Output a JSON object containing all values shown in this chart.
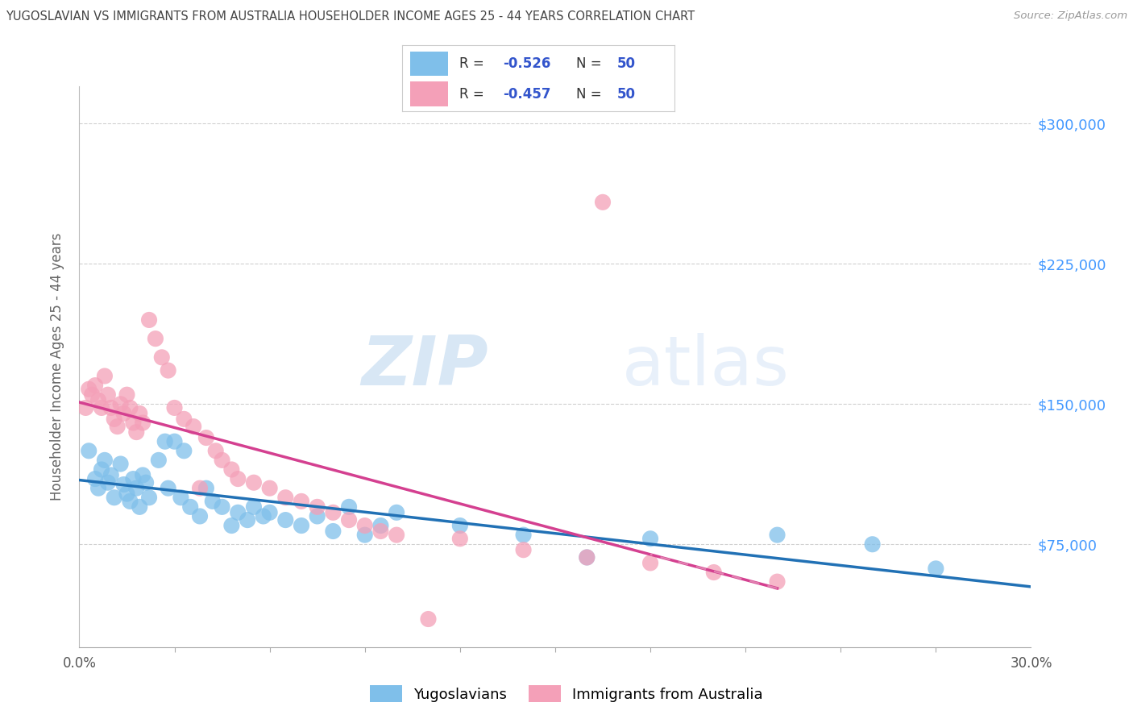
{
  "title": "YUGOSLAVIAN VS IMMIGRANTS FROM AUSTRALIA HOUSEHOLDER INCOME AGES 25 - 44 YEARS CORRELATION CHART",
  "source": "Source: ZipAtlas.com",
  "ylabel": "Householder Income Ages 25 - 44 years",
  "ytick_labels": [
    "$75,000",
    "$150,000",
    "$225,000",
    "$300,000"
  ],
  "ytick_values": [
    75000,
    150000,
    225000,
    300000
  ],
  "ymin": 20000,
  "ymax": 320000,
  "xmin": 0.0,
  "xmax": 0.3,
  "legend1_r": "-0.526",
  "legend1_n": "50",
  "legend2_r": "-0.457",
  "legend2_n": "50",
  "legend_label1": "Yugoslavians",
  "legend_label2": "Immigrants from Australia",
  "blue_color": "#7fbfea",
  "pink_color": "#f4a0b8",
  "blue_line_color": "#2171b5",
  "pink_line_color": "#d44090",
  "pink_dash_color": "#e8a0c0",
  "background_color": "#ffffff",
  "grid_color": "#d0d0d0",
  "title_color": "#444444",
  "right_tick_color": "#4499ff",
  "watermark_zip": "ZIP",
  "watermark_atlas": "atlas",
  "blue_x": [
    0.003,
    0.005,
    0.006,
    0.007,
    0.008,
    0.009,
    0.01,
    0.011,
    0.013,
    0.014,
    0.015,
    0.016,
    0.017,
    0.018,
    0.019,
    0.02,
    0.021,
    0.022,
    0.025,
    0.027,
    0.028,
    0.03,
    0.032,
    0.033,
    0.035,
    0.038,
    0.04,
    0.042,
    0.045,
    0.048,
    0.05,
    0.053,
    0.055,
    0.058,
    0.06,
    0.065,
    0.07,
    0.075,
    0.08,
    0.085,
    0.09,
    0.095,
    0.1,
    0.12,
    0.14,
    0.16,
    0.18,
    0.22,
    0.25,
    0.27
  ],
  "blue_y": [
    125000,
    110000,
    105000,
    115000,
    120000,
    108000,
    112000,
    100000,
    118000,
    107000,
    102000,
    98000,
    110000,
    105000,
    95000,
    112000,
    108000,
    100000,
    120000,
    130000,
    105000,
    130000,
    100000,
    125000,
    95000,
    90000,
    105000,
    98000,
    95000,
    85000,
    92000,
    88000,
    95000,
    90000,
    92000,
    88000,
    85000,
    90000,
    82000,
    95000,
    80000,
    85000,
    92000,
    85000,
    80000,
    68000,
    78000,
    80000,
    75000,
    62000
  ],
  "pink_x": [
    0.002,
    0.003,
    0.004,
    0.005,
    0.006,
    0.007,
    0.008,
    0.009,
    0.01,
    0.011,
    0.012,
    0.013,
    0.014,
    0.015,
    0.016,
    0.017,
    0.018,
    0.019,
    0.02,
    0.022,
    0.024,
    0.026,
    0.028,
    0.03,
    0.033,
    0.036,
    0.038,
    0.04,
    0.043,
    0.045,
    0.048,
    0.05,
    0.055,
    0.06,
    0.065,
    0.07,
    0.075,
    0.08,
    0.085,
    0.09,
    0.095,
    0.1,
    0.11,
    0.12,
    0.14,
    0.16,
    0.18,
    0.2,
    0.22,
    0.165
  ],
  "pink_y": [
    148000,
    158000,
    155000,
    160000,
    152000,
    148000,
    165000,
    155000,
    148000,
    142000,
    138000,
    150000,
    145000,
    155000,
    148000,
    140000,
    135000,
    145000,
    140000,
    195000,
    185000,
    175000,
    168000,
    148000,
    142000,
    138000,
    105000,
    132000,
    125000,
    120000,
    115000,
    110000,
    108000,
    105000,
    100000,
    98000,
    95000,
    92000,
    88000,
    85000,
    82000,
    80000,
    35000,
    78000,
    72000,
    68000,
    65000,
    60000,
    55000,
    258000
  ]
}
